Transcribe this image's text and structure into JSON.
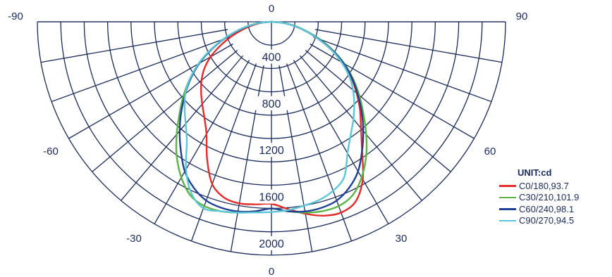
{
  "chart_data": {
    "type": "polar",
    "unit_label": "UNIT:cd",
    "angle_ticks": [
      "-90",
      "-60",
      "-30",
      "0",
      "30",
      "60",
      "90"
    ],
    "top_label": "0",
    "radial_ticks": [
      "400",
      "800",
      "1200",
      "1600",
      "2000"
    ],
    "rmax": 2000,
    "angles": [
      0,
      5,
      10,
      15,
      20,
      25,
      30,
      35,
      40,
      45,
      50,
      55,
      60,
      65,
      70,
      75,
      80,
      85,
      90
    ],
    "series": [
      {
        "name": "C0/180,93.7",
        "color": "#e32b2b",
        "right": [
          1560,
          1610,
          1670,
          1720,
          1740,
          1700,
          1560,
          1350,
          1190,
          1070,
          950,
          830,
          700,
          560,
          420,
          300,
          200,
          100,
          0
        ],
        "left": [
          1560,
          1570,
          1580,
          1560,
          1480,
          1300,
          1110,
          1000,
          920,
          850,
          780,
          700,
          600,
          480,
          360,
          250,
          160,
          80,
          0
        ]
      },
      {
        "name": "C30/210,101.9",
        "color": "#5cb346",
        "right": [
          1600,
          1630,
          1660,
          1680,
          1680,
          1640,
          1540,
          1410,
          1260,
          1110,
          980,
          850,
          720,
          580,
          440,
          310,
          200,
          100,
          0
        ]
      },
      {
        "name": "C60/240,98.1",
        "color": "#1f3f94",
        "right": [
          1600,
          1630,
          1650,
          1650,
          1630,
          1570,
          1480,
          1350,
          1220,
          1090,
          960,
          840,
          710,
          570,
          430,
          300,
          190,
          95,
          0
        ]
      },
      {
        "name": "C90/270,94.5",
        "color": "#5cc7d6",
        "right": [
          1630,
          1620,
          1600,
          1580,
          1540,
          1470,
          1300,
          1180,
          1090,
          1000,
          910,
          810,
          690,
          560,
          420,
          300,
          190,
          95,
          0
        ],
        "left": [
          1630,
          1640,
          1660,
          1680,
          1700,
          1620,
          1460,
          1260,
          1140,
          1050,
          960,
          850,
          720,
          580,
          440,
          310,
          200,
          100,
          0
        ]
      }
    ],
    "grid": true,
    "legend_position": "bottom-right"
  }
}
